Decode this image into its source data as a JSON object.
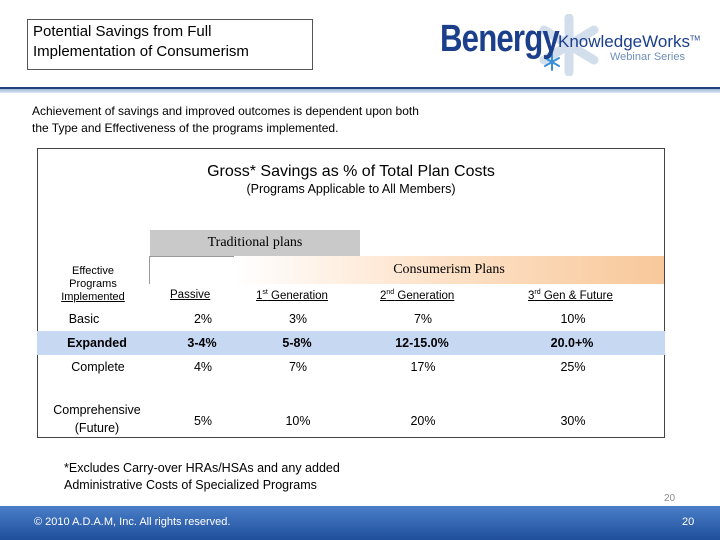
{
  "header": {
    "title_line1": "Potential Savings from  Full",
    "title_line2": "Implementation of Consumerism"
  },
  "logo": {
    "brand": "Benergy",
    "product": "KnowledgeWorks",
    "tm": "TM",
    "series": "Webinar Series"
  },
  "intro": {
    "line1": "Achievement of savings and improved outcomes is dependent upon both",
    "line2": "the Type and Effectiveness of the programs implemented."
  },
  "chart": {
    "title": "Gross* Savings as % of Total Plan Costs",
    "subtitle": "(Programs Applicable to All Members)",
    "traditional_label": "Traditional plans",
    "consumerism_label": "Consumerism Plans",
    "row_header_l1": "Effective",
    "row_header_l2": "Programs",
    "row_header_l3": "Implemented",
    "col_passive": "Passive",
    "col_gen1_num": "1",
    "col_gen1_sup": "st",
    "col_gen1_text": " Generation",
    "col_gen2_num": "2",
    "col_gen2_sup": "nd",
    "col_gen2_text": " Generation",
    "col_gen3_num": "3",
    "col_gen3_sup": "rd",
    "col_gen3_text": " Gen & Future"
  },
  "chart_data": {
    "type": "table",
    "title": "Gross* Savings as % of Total Plan Costs",
    "columns": [
      "Effective Programs Implemented",
      "Passive",
      "1st Generation",
      "2nd Generation",
      "3rd Gen & Future"
    ],
    "rows": [
      [
        "Basic",
        "2%",
        "3%",
        "7%",
        "10%"
      ],
      [
        "Expanded",
        "3-4%",
        "5-8%",
        "12-15.0%",
        "20.0+%"
      ],
      [
        "Complete",
        "4%",
        "7%",
        "17%",
        "25%"
      ],
      [
        "Comprehensive (Future)",
        "5%",
        "10%",
        "20%",
        "30%"
      ]
    ]
  },
  "table": {
    "basic": {
      "label": "Basic",
      "passive": "2%",
      "gen1": "3%",
      "gen2": "7%",
      "gen3": "10%"
    },
    "expanded": {
      "label": "Expanded",
      "passive": "3-4%",
      "gen1": "5-8%",
      "gen2": "12-15.0%",
      "gen3": "20.0+%"
    },
    "complete": {
      "label": "Complete",
      "passive": "4%",
      "gen1": "7%",
      "gen2": "17%",
      "gen3": "25%"
    },
    "comprehensive": {
      "label_l1": "Comprehensive",
      "label_l2": "(Future)",
      "passive": "5%",
      "gen1": "10%",
      "gen2": "20%",
      "gen3": "30%"
    }
  },
  "note": {
    "line1": "*Excludes Carry-over HRAs/HSAs and any added",
    "line2": "Administrative Costs of Specialized Programs"
  },
  "footer": {
    "copyright": "© 2010 A.D.A.M, Inc. All rights reserved.",
    "page_small": "20",
    "page": "20"
  },
  "colors": {
    "brand_blue": "#1b3f8b",
    "highlight_row": "#c7d8f2",
    "traditional_bg": "#c9c9c9",
    "consumerism_bg": "#f8c89a",
    "footer_bg": "#1f4e9b"
  }
}
